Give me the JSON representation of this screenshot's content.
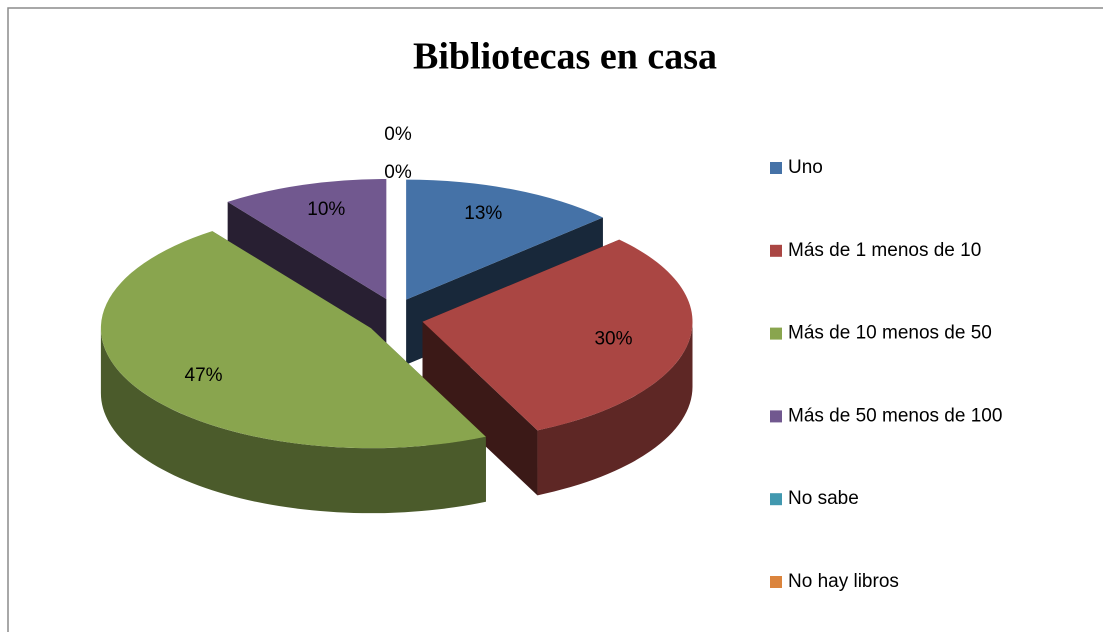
{
  "chart_data": {
    "type": "pie3d",
    "title": "Bibliotecas en casa",
    "categories": [
      "Uno",
      "Más de 1 menos de 10",
      "Más de 10 menos de 50",
      "Más de 50 menos de 100",
      "No sabe",
      "No hay libros"
    ],
    "values": [
      13,
      30,
      47,
      10,
      0,
      0
    ],
    "value_labels": [
      "13%",
      "30%",
      "47%",
      "10%",
      "0%",
      "0%"
    ],
    "colors": [
      "#4572a7",
      "#aa4643",
      "#89a54e",
      "#71588f",
      "#4198af",
      "#db843d"
    ],
    "legend": "right"
  }
}
